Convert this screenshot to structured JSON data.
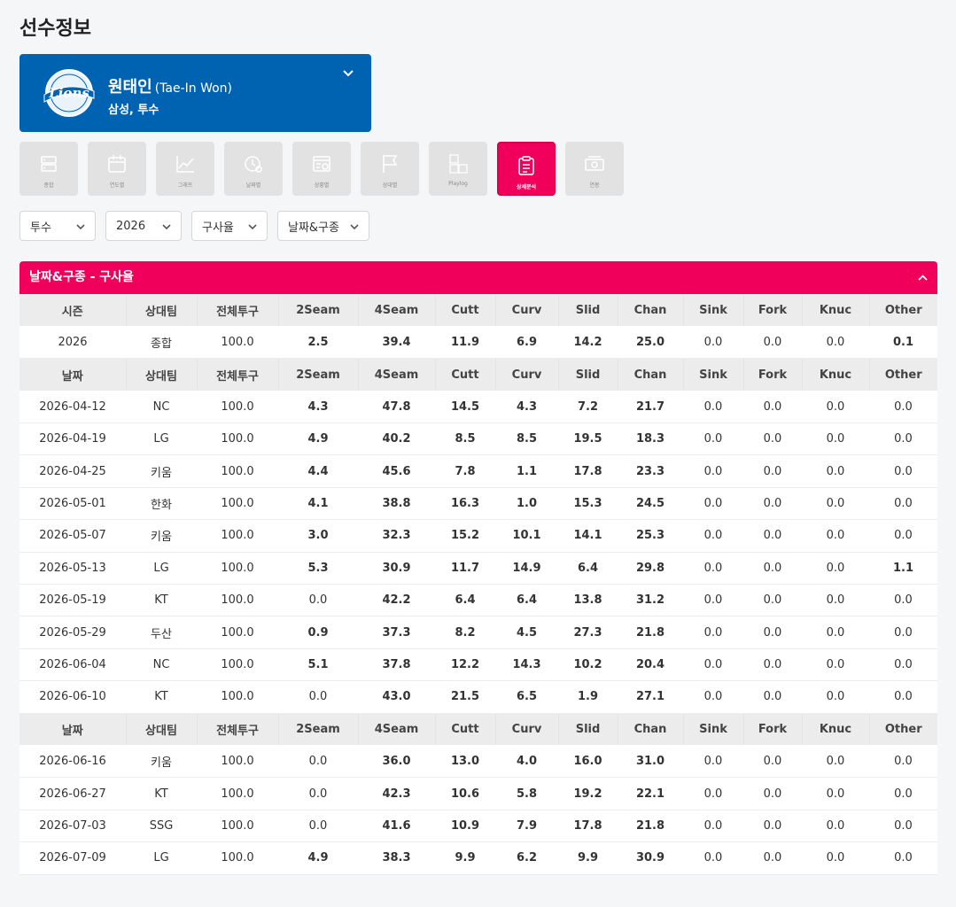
{
  "page": {
    "title": "선수정보"
  },
  "player": {
    "name": "원태인",
    "name_en": "(Tae-In Won)",
    "sub": "삼성, 투수",
    "logo_text": "Lions"
  },
  "tabs": [
    {
      "label": "종합",
      "icon": "server-icon"
    },
    {
      "label": "연도별",
      "icon": "calendar-icon"
    },
    {
      "label": "그래프",
      "icon": "line-chart-icon"
    },
    {
      "label": "날짜별",
      "icon": "clock-gear-icon"
    },
    {
      "label": "상황별",
      "icon": "settings-window-icon"
    },
    {
      "label": "상대별",
      "icon": "flag-icon"
    },
    {
      "label": "Playlog",
      "icon": "abc-blocks-icon"
    },
    {
      "label": "상세분석",
      "icon": "clipboard-icon",
      "active": true
    },
    {
      "label": "연봉",
      "icon": "money-icon"
    }
  ],
  "filters": [
    "투수",
    "2026",
    "구사율",
    "날짜&구종"
  ],
  "section": {
    "title": "날짜&구종 - 구사율"
  },
  "pitch_columns": [
    "2Seam",
    "4Seam",
    "Cutt",
    "Curv",
    "Slid",
    "Chan",
    "Sink",
    "Fork",
    "Knuc",
    "Other"
  ],
  "season_header": [
    "시즌",
    "상대팀",
    "전체투구"
  ],
  "date_header": [
    "날짜",
    "상대팀",
    "전체투구"
  ],
  "season_row": {
    "c0": "2026",
    "c1": "종합",
    "c2": "100.0",
    "vals": [
      "2.5",
      "39.4",
      "11.9",
      "6.9",
      "14.2",
      "25.0",
      "0.0",
      "0.0",
      "0.0",
      "0.1"
    ]
  },
  "groups": [
    [
      {
        "c0": "2026-04-12",
        "c1": "NC",
        "c2": "100.0",
        "vals": [
          "4.3",
          "47.8",
          "14.5",
          "4.3",
          "7.2",
          "21.7",
          "0.0",
          "0.0",
          "0.0",
          "0.0"
        ]
      },
      {
        "c0": "2026-04-19",
        "c1": "LG",
        "c2": "100.0",
        "vals": [
          "4.9",
          "40.2",
          "8.5",
          "8.5",
          "19.5",
          "18.3",
          "0.0",
          "0.0",
          "0.0",
          "0.0"
        ]
      },
      {
        "c0": "2026-04-25",
        "c1": "키움",
        "c2": "100.0",
        "vals": [
          "4.4",
          "45.6",
          "7.8",
          "1.1",
          "17.8",
          "23.3",
          "0.0",
          "0.0",
          "0.0",
          "0.0"
        ]
      },
      {
        "c0": "2026-05-01",
        "c1": "한화",
        "c2": "100.0",
        "vals": [
          "4.1",
          "38.8",
          "16.3",
          "1.0",
          "15.3",
          "24.5",
          "0.0",
          "0.0",
          "0.0",
          "0.0"
        ]
      },
      {
        "c0": "2026-05-07",
        "c1": "키움",
        "c2": "100.0",
        "vals": [
          "3.0",
          "32.3",
          "15.2",
          "10.1",
          "14.1",
          "25.3",
          "0.0",
          "0.0",
          "0.0",
          "0.0"
        ]
      },
      {
        "c0": "2026-05-13",
        "c1": "LG",
        "c2": "100.0",
        "vals": [
          "5.3",
          "30.9",
          "11.7",
          "14.9",
          "6.4",
          "29.8",
          "0.0",
          "0.0",
          "0.0",
          "1.1"
        ]
      },
      {
        "c0": "2026-05-19",
        "c1": "KT",
        "c2": "100.0",
        "vals": [
          "0.0",
          "42.2",
          "6.4",
          "6.4",
          "13.8",
          "31.2",
          "0.0",
          "0.0",
          "0.0",
          "0.0"
        ]
      },
      {
        "c0": "2026-05-29",
        "c1": "두산",
        "c2": "100.0",
        "vals": [
          "0.9",
          "37.3",
          "8.2",
          "4.5",
          "27.3",
          "21.8",
          "0.0",
          "0.0",
          "0.0",
          "0.0"
        ]
      },
      {
        "c0": "2026-06-04",
        "c1": "NC",
        "c2": "100.0",
        "vals": [
          "5.1",
          "37.8",
          "12.2",
          "14.3",
          "10.2",
          "20.4",
          "0.0",
          "0.0",
          "0.0",
          "0.0"
        ]
      },
      {
        "c0": "2026-06-10",
        "c1": "KT",
        "c2": "100.0",
        "vals": [
          "0.0",
          "43.0",
          "21.5",
          "6.5",
          "1.9",
          "27.1",
          "0.0",
          "0.0",
          "0.0",
          "0.0"
        ]
      }
    ],
    [
      {
        "c0": "2026-06-16",
        "c1": "키움",
        "c2": "100.0",
        "vals": [
          "0.0",
          "36.0",
          "13.0",
          "4.0",
          "16.0",
          "31.0",
          "0.0",
          "0.0",
          "0.0",
          "0.0"
        ]
      },
      {
        "c0": "2026-06-27",
        "c1": "KT",
        "c2": "100.0",
        "vals": [
          "0.0",
          "42.3",
          "10.6",
          "5.8",
          "19.2",
          "22.1",
          "0.0",
          "0.0",
          "0.0",
          "0.0"
        ]
      },
      {
        "c0": "2026-07-03",
        "c1": "SSG",
        "c2": "100.0",
        "vals": [
          "0.0",
          "41.6",
          "10.9",
          "7.9",
          "17.8",
          "21.8",
          "0.0",
          "0.0",
          "0.0",
          "0.0"
        ]
      },
      {
        "c0": "2026-07-09",
        "c1": "LG",
        "c2": "100.0",
        "vals": [
          "4.9",
          "38.3",
          "9.9",
          "6.2",
          "9.9",
          "30.9",
          "0.0",
          "0.0",
          "0.0",
          "0.0"
        ]
      }
    ]
  ],
  "colors": {
    "primary": "#0063b2",
    "accent": "#f0005a",
    "teal": "#1f8aab",
    "green": "#0b6b22",
    "navy": "#0d1e63",
    "zero": "#999999"
  }
}
